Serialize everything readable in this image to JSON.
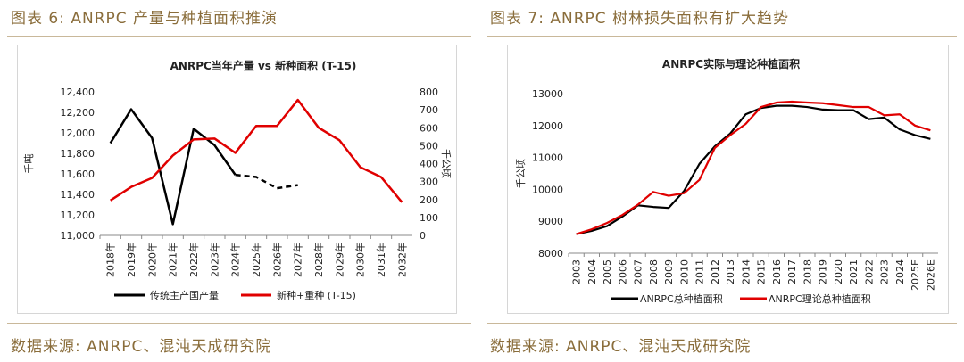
{
  "left": {
    "figure_title": "图表 6:  ANRPC 产量与种植面积推演",
    "source": "数据来源:  ANRPC、混沌天成研究院"
  },
  "right": {
    "figure_title": "图表 7: ANRPC 树林损失面积有扩大趋势",
    "source": "数据来源:  ANRPC、混沌天成研究院"
  },
  "chart_data": [
    {
      "type": "line",
      "title": "ANRPC当年产量 vs 新种面积 (T-15)",
      "categories": [
        "2018年",
        "2019年",
        "2020年",
        "2021年",
        "2022年",
        "2023年",
        "2024年",
        "2025年",
        "2026年",
        "2027年",
        "2028年",
        "2029年",
        "2030年",
        "2031年",
        "2032年"
      ],
      "ylabel": "千吨",
      "y2label": "千公顷",
      "ylim": [
        11000,
        12400
      ],
      "yticks": [
        "11,000",
        "11,200",
        "11,400",
        "11,600",
        "11,800",
        "12,000",
        "12,200",
        "12,400"
      ],
      "y2lim": [
        0,
        800
      ],
      "y2ticks": [
        "0",
        "100",
        "200",
        "300",
        "400",
        "500",
        "600",
        "700",
        "800"
      ],
      "series": [
        {
          "name": "传统主产国产量",
          "axis": "left",
          "color": "#000000",
          "values": [
            11900,
            12230,
            11950,
            11110,
            12040,
            11880,
            11590,
            11570,
            11460,
            11490,
            null,
            null,
            null,
            null,
            null
          ],
          "dashed_from_index": 6
        },
        {
          "name": "新种+重种 (T-15)",
          "axis": "right",
          "color": "#e00000",
          "values": [
            195,
            270,
            320,
            445,
            535,
            540,
            460,
            610,
            610,
            755,
            600,
            530,
            380,
            325,
            185
          ]
        }
      ],
      "legend": "bottom"
    },
    {
      "type": "line",
      "title": "ANRPC实际与理论种植面积",
      "categories": [
        "2003",
        "2004",
        "2005",
        "2006",
        "2007",
        "2008",
        "2009",
        "2010",
        "2011",
        "2012",
        "2013",
        "2014",
        "2015",
        "2016",
        "2017",
        "2018",
        "2019",
        "2020",
        "2021",
        "2022",
        "2023",
        "2024",
        "2025E",
        "2026E"
      ],
      "ylabel": "千公顷",
      "ylim": [
        8000,
        13000
      ],
      "yticks": [
        "8000",
        "9000",
        "10000",
        "11000",
        "12000",
        "13000"
      ],
      "series": [
        {
          "name": "ANRPC总种植面积",
          "color": "#000000",
          "values": [
            8600,
            8700,
            8850,
            9150,
            9500,
            9450,
            9420,
            9950,
            10800,
            11350,
            11750,
            12350,
            12550,
            12620,
            12620,
            12580,
            12500,
            12480,
            12480,
            12200,
            12250,
            11880,
            11700,
            11580
          ]
        },
        {
          "name": "ANRPC理论总种植面积",
          "color": "#e00000",
          "values": [
            8600,
            8750,
            8950,
            9200,
            9520,
            9920,
            9800,
            9880,
            10300,
            11300,
            11700,
            12050,
            12580,
            12720,
            12750,
            12720,
            12700,
            12640,
            12580,
            12580,
            12320,
            12350,
            12000,
            11850
          ]
        }
      ],
      "legend": "bottom"
    }
  ]
}
